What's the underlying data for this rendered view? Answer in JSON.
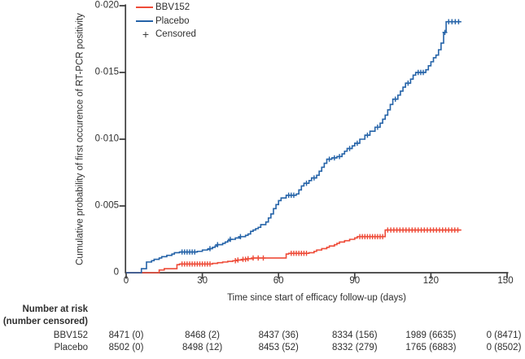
{
  "colors": {
    "bbv152": "#ee4b38",
    "placebo": "#2563a8",
    "axis": "#3d3d3d",
    "text": "#2f2f2f"
  },
  "chart": {
    "y_axis": {
      "label": "Cumulative probability of first occurence of RT-PCR positivity",
      "ticks": [
        "0·020",
        "0·015",
        "0·010",
        "0·005",
        "0"
      ]
    },
    "x_axis": {
      "label": "Time since start of efficacy follow-up (days)",
      "ticks": [
        "0",
        "30",
        "60",
        "90",
        "120",
        "150"
      ]
    },
    "legend": {
      "items": [
        {
          "label": "BBV152"
        },
        {
          "label": "Placebo"
        },
        {
          "label": "Censored",
          "symbol": "+"
        }
      ]
    }
  },
  "chart_data": {
    "type": "line",
    "subtype": "kaplan-meier-step-cumulative-incidence",
    "title": "",
    "xlabel": "Time since start of efficacy follow-up (days)",
    "ylabel": "Cumulative probability of first occurence of RT-PCR positivity",
    "xlim": [
      0,
      150
    ],
    "ylim": [
      0,
      0.02
    ],
    "x_tick_values": [
      0,
      30,
      60,
      90,
      120,
      150
    ],
    "y_tick_values": [
      0,
      0.005,
      0.01,
      0.015,
      0.02
    ],
    "grid": false,
    "legend_position": "top-left-inside",
    "series": [
      {
        "name": "BBV152",
        "color": "#ee4b38",
        "steps": [
          [
            0,
            0
          ],
          [
            13,
            0.0002
          ],
          [
            15,
            0.0003
          ],
          [
            20,
            0.0006
          ],
          [
            21,
            0.00065
          ],
          [
            34,
            0.0007
          ],
          [
            36,
            0.00075
          ],
          [
            38,
            0.0008
          ],
          [
            40,
            0.00085
          ],
          [
            42,
            0.0009
          ],
          [
            44,
            0.00095
          ],
          [
            46,
            0.001
          ],
          [
            48,
            0.00105
          ],
          [
            50,
            0.0011
          ],
          [
            63,
            0.0014
          ],
          [
            64,
            0.00145
          ],
          [
            72,
            0.0015
          ],
          [
            74,
            0.0016
          ],
          [
            75,
            0.0017
          ],
          [
            77,
            0.0018
          ],
          [
            79,
            0.0019
          ],
          [
            80,
            0.002
          ],
          [
            82,
            0.0021
          ],
          [
            83,
            0.0022
          ],
          [
            84,
            0.0023
          ],
          [
            86,
            0.0024
          ],
          [
            88,
            0.0025
          ],
          [
            90,
            0.0026
          ],
          [
            91,
            0.0027
          ],
          [
            102,
            0.0032
          ],
          [
            132,
            0.0032
          ]
        ],
        "censor_marks": [
          [
            22,
            0.00065
          ],
          [
            23,
            0.00065
          ],
          [
            24,
            0.00065
          ],
          [
            25,
            0.00065
          ],
          [
            26,
            0.00065
          ],
          [
            27,
            0.00065
          ],
          [
            28,
            0.00065
          ],
          [
            29,
            0.00065
          ],
          [
            30,
            0.00065
          ],
          [
            31,
            0.00065
          ],
          [
            32,
            0.00065
          ],
          [
            33,
            0.00065
          ],
          [
            43,
            0.0009
          ],
          [
            44,
            0.00095
          ],
          [
            46,
            0.001
          ],
          [
            47,
            0.001
          ],
          [
            48,
            0.00105
          ],
          [
            50,
            0.0011
          ],
          [
            52,
            0.0011
          ],
          [
            54,
            0.0011
          ],
          [
            65,
            0.00145
          ],
          [
            66,
            0.00145
          ],
          [
            67,
            0.00145
          ],
          [
            68,
            0.00145
          ],
          [
            69,
            0.00145
          ],
          [
            70,
            0.00145
          ],
          [
            71,
            0.00145
          ],
          [
            92,
            0.0027
          ],
          [
            93,
            0.0027
          ],
          [
            94,
            0.0027
          ],
          [
            95,
            0.0027
          ],
          [
            96,
            0.0027
          ],
          [
            97,
            0.0027
          ],
          [
            98,
            0.0027
          ],
          [
            99,
            0.0027
          ],
          [
            100,
            0.0027
          ],
          [
            101,
            0.0027
          ],
          [
            103,
            0.0032
          ],
          [
            104.2,
            0.0032
          ],
          [
            105.4,
            0.0032
          ],
          [
            106.6,
            0.0032
          ],
          [
            107.8,
            0.0032
          ],
          [
            109,
            0.0032
          ],
          [
            110.2,
            0.0032
          ],
          [
            111.4,
            0.0032
          ],
          [
            112.6,
            0.0032
          ],
          [
            113.8,
            0.0032
          ],
          [
            115,
            0.0032
          ],
          [
            116.2,
            0.0032
          ],
          [
            117.4,
            0.0032
          ],
          [
            118.6,
            0.0032
          ],
          [
            119.8,
            0.0032
          ],
          [
            121,
            0.0032
          ],
          [
            122.2,
            0.0032
          ],
          [
            123.4,
            0.0032
          ],
          [
            124.6,
            0.0032
          ],
          [
            125.8,
            0.0032
          ],
          [
            127,
            0.0032
          ],
          [
            128.2,
            0.0032
          ],
          [
            129.4,
            0.0032
          ],
          [
            130.6,
            0.0032
          ]
        ]
      },
      {
        "name": "Placebo",
        "color": "#2563a8",
        "steps": [
          [
            0,
            0
          ],
          [
            6,
            0.0003
          ],
          [
            8,
            0.0008
          ],
          [
            10,
            0.0009
          ],
          [
            11,
            0.001
          ],
          [
            13,
            0.0011
          ],
          [
            14,
            0.0012
          ],
          [
            16,
            0.0013
          ],
          [
            18,
            0.0014
          ],
          [
            19,
            0.0015
          ],
          [
            21,
            0.00155
          ],
          [
            28,
            0.0016
          ],
          [
            30,
            0.0017
          ],
          [
            32,
            0.00175
          ],
          [
            33,
            0.0018
          ],
          [
            34,
            0.0019
          ],
          [
            35,
            0.002
          ],
          [
            36,
            0.0021
          ],
          [
            38,
            0.0022
          ],
          [
            39,
            0.0023
          ],
          [
            40,
            0.0024
          ],
          [
            41,
            0.0025
          ],
          [
            43,
            0.0026
          ],
          [
            45,
            0.0027
          ],
          [
            47,
            0.0028
          ],
          [
            48,
            0.0029
          ],
          [
            49,
            0.0031
          ],
          [
            50,
            0.0032
          ],
          [
            51,
            0.0033
          ],
          [
            52,
            0.0034
          ],
          [
            53,
            0.0036
          ],
          [
            55,
            0.0038
          ],
          [
            56,
            0.0041
          ],
          [
            57,
            0.0044
          ],
          [
            58,
            0.0048
          ],
          [
            59,
            0.0051
          ],
          [
            60,
            0.0054
          ],
          [
            61,
            0.0056
          ],
          [
            63,
            0.0058
          ],
          [
            67,
            0.0059
          ],
          [
            68,
            0.0062
          ],
          [
            69,
            0.0065
          ],
          [
            70,
            0.0067
          ],
          [
            72,
            0.0069
          ],
          [
            73,
            0.0071
          ],
          [
            75,
            0.0073
          ],
          [
            76,
            0.0076
          ],
          [
            77,
            0.0079
          ],
          [
            78,
            0.0082
          ],
          [
            79,
            0.0085
          ],
          [
            81,
            0.0086
          ],
          [
            83,
            0.0087
          ],
          [
            85,
            0.0089
          ],
          [
            86,
            0.0091
          ],
          [
            87,
            0.0093
          ],
          [
            89,
            0.0095
          ],
          [
            90,
            0.0097
          ],
          [
            92,
            0.01
          ],
          [
            94,
            0.0103
          ],
          [
            96,
            0.0106
          ],
          [
            98,
            0.0109
          ],
          [
            100,
            0.0112
          ],
          [
            101,
            0.0115
          ],
          [
            102,
            0.0118
          ],
          [
            103,
            0.0122
          ],
          [
            104,
            0.0126
          ],
          [
            105,
            0.013
          ],
          [
            107,
            0.0133
          ],
          [
            108,
            0.0136
          ],
          [
            109,
            0.0139
          ],
          [
            110,
            0.0142
          ],
          [
            112,
            0.0145
          ],
          [
            113,
            0.0148
          ],
          [
            114,
            0.015
          ],
          [
            118,
            0.0152
          ],
          [
            119,
            0.0155
          ],
          [
            120,
            0.0158
          ],
          [
            121,
            0.0161
          ],
          [
            122,
            0.0163
          ],
          [
            123,
            0.0167
          ],
          [
            124,
            0.0172
          ],
          [
            125,
            0.018
          ],
          [
            126,
            0.0188
          ],
          [
            132,
            0.0188
          ]
        ],
        "censor_marks": [
          [
            22,
            0.00155
          ],
          [
            23,
            0.00155
          ],
          [
            24,
            0.00155
          ],
          [
            25,
            0.00155
          ],
          [
            26,
            0.00155
          ],
          [
            27,
            0.00155
          ],
          [
            33,
            0.0018
          ],
          [
            36,
            0.0021
          ],
          [
            41,
            0.0025
          ],
          [
            45,
            0.0027
          ],
          [
            64,
            0.0058
          ],
          [
            65,
            0.0058
          ],
          [
            66,
            0.0058
          ],
          [
            71,
            0.0067
          ],
          [
            74,
            0.0071
          ],
          [
            80,
            0.0085
          ],
          [
            82,
            0.0086
          ],
          [
            84,
            0.0087
          ],
          [
            88,
            0.0093
          ],
          [
            91,
            0.0097
          ],
          [
            95,
            0.0103
          ],
          [
            99,
            0.0109
          ],
          [
            106,
            0.013
          ],
          [
            111,
            0.0142
          ],
          [
            115,
            0.015
          ],
          [
            116,
            0.015
          ],
          [
            117,
            0.015
          ],
          [
            125.5,
            0.018
          ],
          [
            127,
            0.0188
          ],
          [
            128.3,
            0.0188
          ],
          [
            129.6,
            0.0188
          ],
          [
            130.9,
            0.0188
          ]
        ]
      }
    ]
  },
  "risk_table": {
    "header_line1": "Number at risk",
    "header_line2": "(number censored)",
    "timepoints": [
      0,
      30,
      60,
      90,
      120,
      150
    ],
    "rows": [
      {
        "label": "BBV152",
        "values": [
          "8471 (0)",
          "8468 (2)",
          "8437 (36)",
          "8334 (156)",
          "1989 (6635)",
          "0 (8471)"
        ]
      },
      {
        "label": "Placebo",
        "values": [
          "8502 (0)",
          "8498 (12)",
          "8453 (52)",
          "8332 (279)",
          "1765 (6883)",
          "0 (8502)"
        ]
      }
    ]
  }
}
